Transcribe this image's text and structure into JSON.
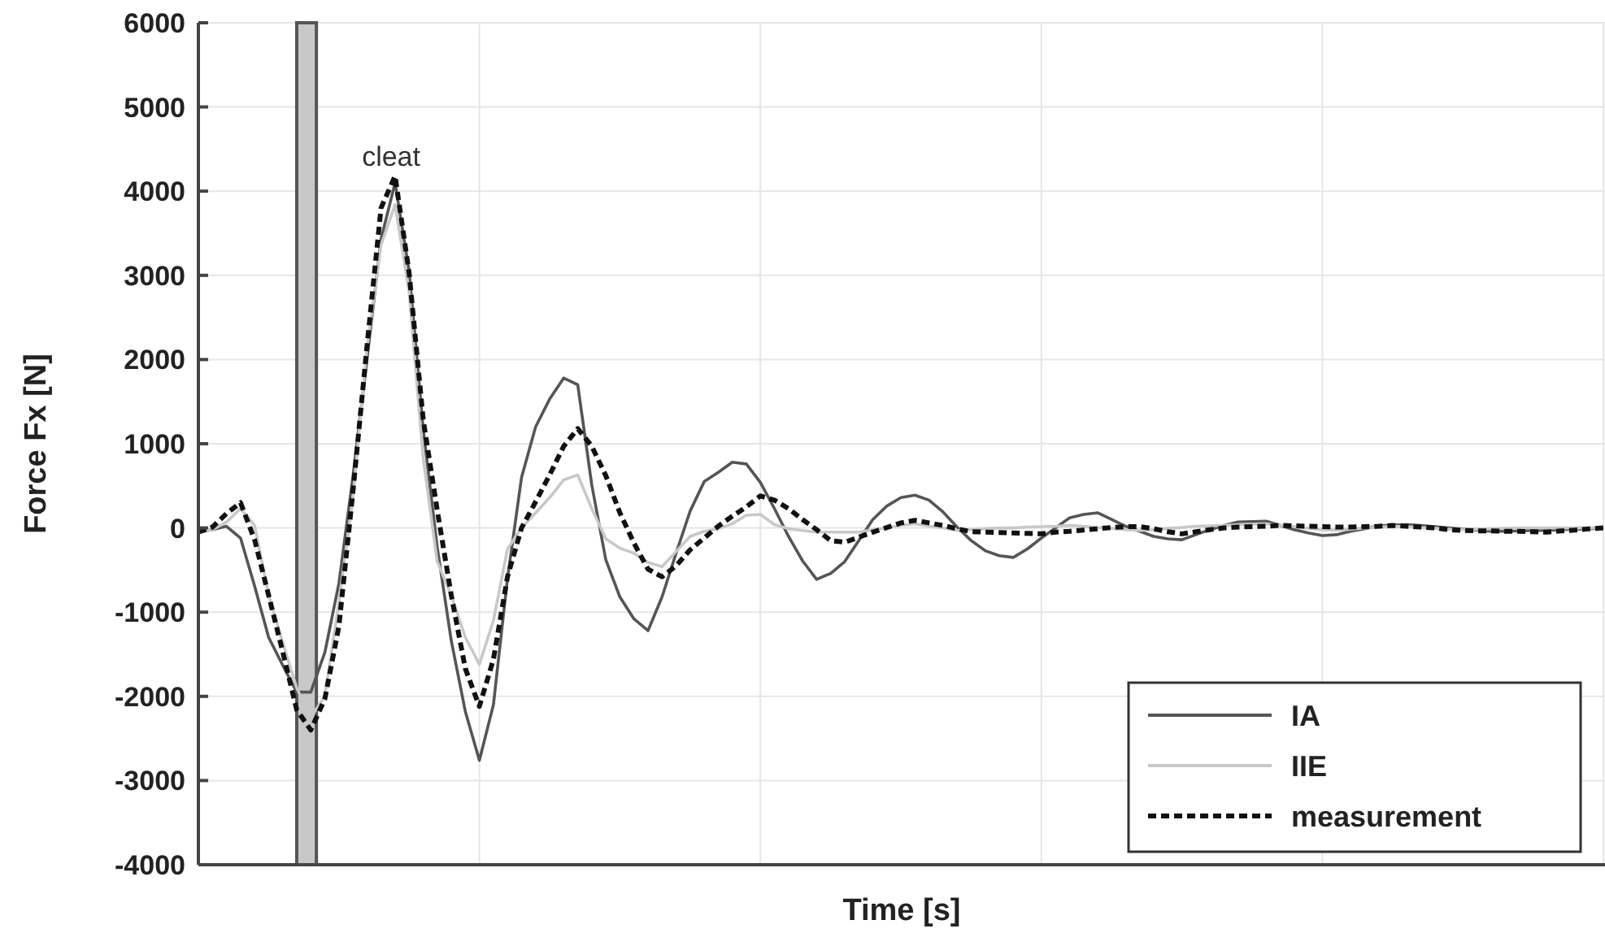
{
  "chart_data": {
    "type": "line",
    "xlabel": "Time [s]",
    "ylabel": "Force Fx [N]",
    "ylim": [
      -4000,
      6000
    ],
    "yticks": [
      -4000,
      -3000,
      -2000,
      -1000,
      0,
      1000,
      2000,
      3000,
      4000,
      5000,
      6000
    ],
    "grid": true,
    "legend": "bottom right",
    "marker": "none",
    "annotations": [
      "cleat"
    ],
    "categories": [
      null,
      null,
      null,
      null,
      null,
      null,
      null,
      null,
      null,
      null,
      null,
      null,
      null,
      null,
      null,
      null,
      null,
      null,
      null,
      null,
      null,
      null,
      null,
      null,
      null,
      null,
      null,
      null,
      null,
      null,
      null,
      null,
      null,
      null,
      null,
      null,
      null,
      null,
      null,
      null,
      null,
      null,
      null,
      null,
      null,
      null,
      null,
      null,
      null,
      null,
      null,
      null,
      null,
      null,
      null,
      null,
      null,
      null,
      null,
      null,
      null,
      null,
      null,
      null,
      null,
      null,
      null,
      null,
      null,
      null,
      null,
      null,
      null,
      null,
      null,
      null,
      null,
      null,
      null,
      null,
      null,
      null,
      null,
      null,
      null,
      null,
      null,
      null,
      null,
      null,
      null,
      null,
      null,
      null,
      null,
      null,
      null,
      null,
      null,
      null,
      null
    ],
    "series": [
      {
        "name": "IA",
        "color": "#555555",
        "line_style": "solid",
        "values": [
          -50,
          -20,
          20,
          -120,
          -690,
          -1300,
          -1630,
          -1950,
          -1950,
          -1480,
          -660,
          610,
          2000,
          3430,
          4100,
          3050,
          1180,
          -230,
          -1340,
          -2180,
          -2760,
          -2100,
          -600,
          600,
          1200,
          1530,
          1780,
          1700,
          510,
          -380,
          -820,
          -1080,
          -1220,
          -820,
          -300,
          200,
          550,
          660,
          780,
          760,
          540,
          230,
          -100,
          -390,
          -610,
          -540,
          -400,
          -150,
          100,
          260,
          360,
          390,
          330,
          190,
          10,
          -150,
          -270,
          -330,
          -350,
          -250,
          -120,
          0,
          120,
          160,
          180,
          100,
          20,
          -40,
          -100,
          -130,
          -140,
          -80,
          -20,
          30,
          70,
          75,
          80,
          30,
          -20,
          -60,
          -90,
          -80,
          -40,
          -10,
          25,
          35,
          40,
          30,
          15,
          0,
          -15,
          -25,
          -40,
          -40,
          -35,
          -30,
          -30,
          -20,
          -15,
          -10,
          0
        ]
      },
      {
        "name": "IIE",
        "color": "#c8c8c8",
        "line_style": "solid",
        "values": [
          -50,
          -20,
          70,
          230,
          30,
          -800,
          -1360,
          -1900,
          -2250,
          -2000,
          -890,
          360,
          2140,
          3360,
          3840,
          2800,
          830,
          -400,
          -800,
          -1300,
          -1620,
          -1100,
          -250,
          0,
          180,
          360,
          570,
          630,
          230,
          -130,
          -240,
          -300,
          -410,
          -460,
          -280,
          -100,
          -40,
          -10,
          50,
          150,
          160,
          40,
          -10,
          -30,
          -50,
          -50,
          -50,
          -50,
          -20,
          0,
          30,
          50,
          20,
          0,
          -30,
          -20,
          -10,
          0,
          0,
          10,
          15,
          20,
          30,
          20,
          5,
          -5,
          -20,
          -30,
          -20,
          -5,
          5,
          20,
          25,
          30,
          40,
          45,
          50,
          30,
          15,
          -5,
          -20,
          -25,
          -15,
          0,
          10,
          20,
          15,
          5,
          -5,
          -15,
          -20,
          -15,
          -10,
          -5,
          0,
          0,
          0,
          0,
          0,
          0,
          0
        ]
      },
      {
        "name": "measurement",
        "color": "#111111",
        "line_style": "dashed",
        "values": [
          -50,
          10,
          170,
          300,
          -140,
          -800,
          -1470,
          -2160,
          -2400,
          -2030,
          -1170,
          430,
          2160,
          3800,
          4180,
          3030,
          1290,
          210,
          -800,
          -1670,
          -2120,
          -1560,
          -580,
          0,
          310,
          630,
          970,
          1180,
          970,
          620,
          180,
          -180,
          -490,
          -580,
          -450,
          -260,
          -120,
          20,
          140,
          250,
          380,
          330,
          230,
          100,
          -20,
          -150,
          -170,
          -110,
          -50,
          5,
          60,
          90,
          60,
          30,
          -10,
          -45,
          -50,
          -55,
          -60,
          -65,
          -70,
          -50,
          -40,
          -25,
          -10,
          5,
          15,
          15,
          -10,
          -45,
          -70,
          -45,
          -20,
          0,
          10,
          15,
          20,
          30,
          25,
          20,
          15,
          10,
          10,
          15,
          20,
          30,
          20,
          10,
          0,
          -20,
          -30,
          -35,
          -35,
          -40,
          -40,
          -45,
          -50,
          -35,
          -25,
          -10,
          0
        ]
      }
    ]
  }
}
